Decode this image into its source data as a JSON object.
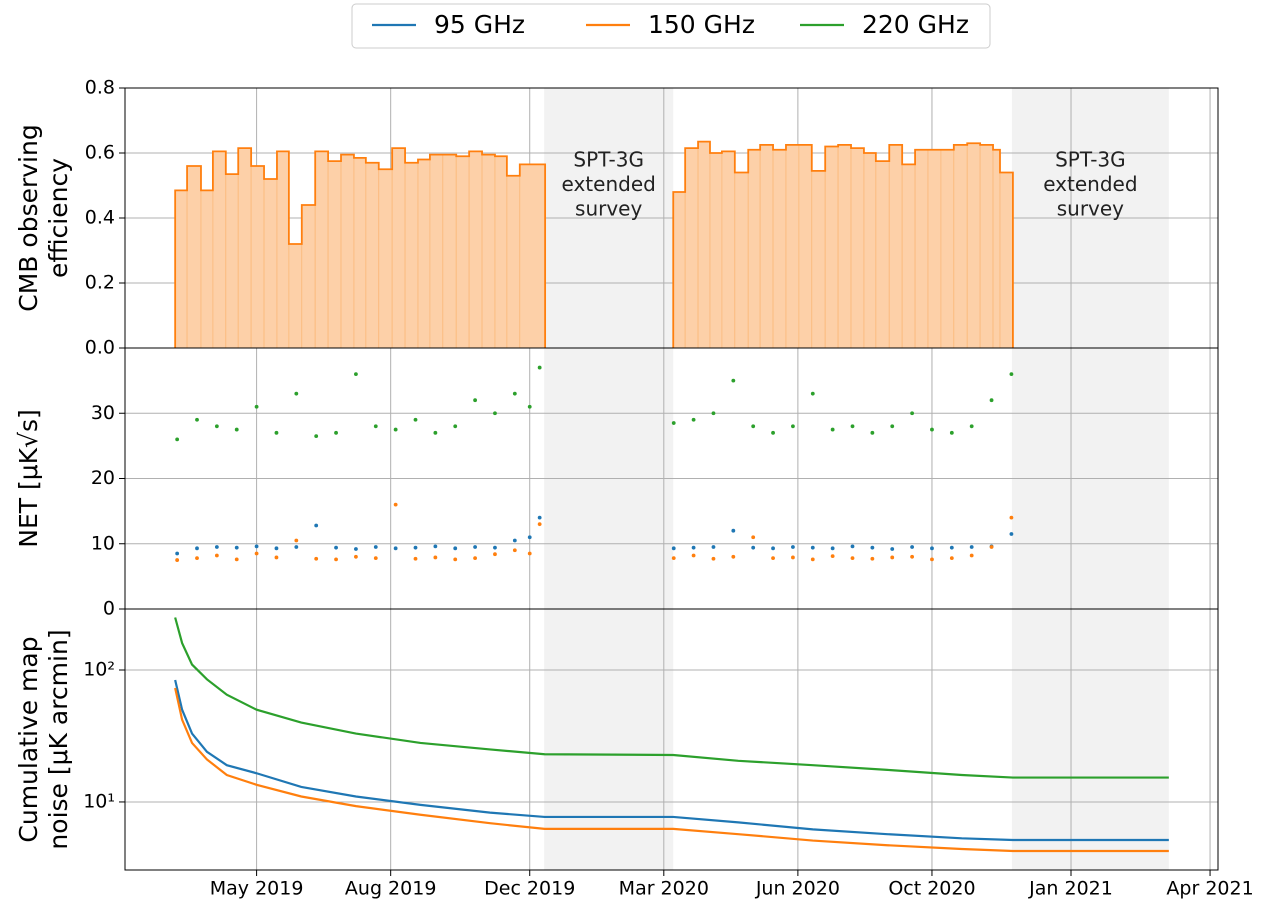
{
  "chart_data": [
    {
      "type": "histogram",
      "ylabel": [
        "CMB observing",
        "efficiency"
      ],
      "ylim": [
        0,
        0.8
      ],
      "yticks": [
        {
          "value": 0,
          "label": "0.0"
        },
        0.2,
        0.4,
        0.6,
        0.8
      ],
      "color": "#ff7f0e",
      "fill": "#fdd0a8",
      "series": [
        {
          "bins": [
            2019.166,
            2019.19,
            2019.218,
            2019.242,
            2019.268,
            2019.293,
            2019.319,
            2019.345,
            2019.371,
            2019.395,
            2019.421,
            2019.448,
            2019.474,
            2019.5,
            2019.526,
            2019.55,
            2019.576,
            2019.603,
            2019.629,
            2019.655,
            2019.679,
            2019.705,
            2019.732,
            2019.758,
            2019.784,
            2019.81,
            2019.834,
            2019.86,
            2019.911
          ],
          "values": [
            0.485,
            0.56,
            0.485,
            0.605,
            0.535,
            0.615,
            0.56,
            0.52,
            0.605,
            0.32,
            0.44,
            0.605,
            0.575,
            0.595,
            0.585,
            0.57,
            0.55,
            0.615,
            0.57,
            0.58,
            0.595,
            0.595,
            0.59,
            0.605,
            0.595,
            0.59,
            0.53,
            0.565
          ]
        },
        {
          "bins": [
            2020.169,
            2020.193,
            2020.219,
            2020.243,
            2020.267,
            2020.293,
            2020.32,
            2020.344,
            2020.37,
            2020.396,
            2020.422,
            2020.448,
            2020.475,
            2020.501,
            2020.527,
            2020.553,
            2020.577,
            2020.604,
            2020.63,
            2020.656,
            2020.682,
            2020.708,
            2020.734,
            2020.761,
            2020.787,
            2020.813,
            2020.827,
            2020.853
          ],
          "values": [
            0.48,
            0.615,
            0.635,
            0.6,
            0.605,
            0.54,
            0.61,
            0.625,
            0.61,
            0.625,
            0.625,
            0.545,
            0.62,
            0.625,
            0.615,
            0.6,
            0.575,
            0.625,
            0.565,
            0.61,
            0.61,
            0.61,
            0.625,
            0.63,
            0.625,
            0.61,
            0.54
          ]
        }
      ],
      "annotations": [
        {
          "xrange": [
            2019.909,
            2020.169
          ],
          "text": [
            "SPT-3G",
            "extended",
            "survey"
          ]
        },
        {
          "xrange": [
            2020.851,
            2021.167
          ],
          "text": [
            "SPT-3G",
            "extended",
            "survey"
          ]
        }
      ]
    },
    {
      "type": "scatter",
      "ylabel": "NET [μK√s]",
      "ylim": [
        0,
        40
      ],
      "yticks": [
        0,
        10,
        20,
        30
      ],
      "x": [
        2019.17,
        2019.21,
        2019.25,
        2019.29,
        2019.33,
        2019.37,
        2019.41,
        2019.45,
        2019.49,
        2019.53,
        2019.57,
        2019.61,
        2019.65,
        2019.69,
        2019.73,
        2019.77,
        2019.81,
        2019.85,
        2019.88,
        2019.9,
        2020.17,
        2020.21,
        2020.25,
        2020.29,
        2020.33,
        2020.37,
        2020.41,
        2020.45,
        2020.49,
        2020.53,
        2020.57,
        2020.61,
        2020.65,
        2020.69,
        2020.73,
        2020.77,
        2020.81,
        2020.85
      ],
      "series": [
        {
          "color": "#1f77b4",
          "values": [
            8.5,
            9.3,
            9.5,
            9.4,
            9.6,
            9.3,
            9.5,
            12.8,
            9.4,
            9.2,
            9.5,
            9.3,
            9.4,
            9.6,
            9.3,
            9.5,
            9.4,
            10.5,
            11,
            14,
            9.3,
            9.4,
            9.5,
            12,
            9.4,
            9.3,
            9.5,
            9.4,
            9.3,
            9.6,
            9.4,
            9.2,
            9.5,
            9.3,
            9.4,
            9.5,
            9.6,
            11.5
          ]
        },
        {
          "color": "#ff7f0e",
          "values": [
            7.5,
            7.8,
            8.2,
            7.6,
            8.5,
            7.9,
            10.5,
            7.7,
            7.6,
            8.0,
            7.8,
            16,
            7.7,
            7.9,
            7.6,
            7.8,
            8.4,
            9,
            8.5,
            13,
            7.8,
            8.2,
            7.7,
            8.0,
            11,
            7.8,
            7.9,
            7.6,
            8.1,
            7.8,
            7.7,
            7.9,
            8.0,
            7.6,
            7.8,
            8.2,
            9.5,
            14
          ]
        },
        {
          "color": "#2ca02c",
          "values": [
            26,
            29,
            28,
            27.5,
            31,
            27,
            33,
            26.5,
            27,
            36,
            28,
            27.5,
            29,
            27,
            28,
            32,
            30,
            33,
            31,
            37,
            28.5,
            29,
            30,
            35,
            28,
            27,
            28,
            33,
            27.5,
            28,
            27,
            28,
            30,
            27.5,
            27,
            28,
            32,
            36
          ]
        }
      ]
    },
    {
      "type": "line",
      "ylabel": [
        "Cumulative map",
        "noise [μK arcmin]"
      ],
      "log": true,
      "ylim": [
        3.05,
        290
      ],
      "yticks": [
        {
          "value": 100,
          "label": "10²"
        },
        {
          "value": 10,
          "label": "10¹"
        }
      ],
      "xlim": [
        2019.065,
        2021.266
      ],
      "xticks": [
        {
          "value": 2019.33,
          "label": "May 2019"
        },
        {
          "value": 2019.6,
          "label": "Aug 2019"
        },
        {
          "value": 2019.88,
          "label": "Dec 2019"
        },
        {
          "value": 2020.15,
          "label": "Mar 2020"
        },
        {
          "value": 2020.42,
          "label": "Jun 2020"
        },
        {
          "value": 2020.69,
          "label": "Oct 2020"
        },
        {
          "value": 2020.97,
          "label": "Jan 2021"
        },
        {
          "value": 2021.25,
          "label": "Apr 2021"
        }
      ],
      "grid": true,
      "legend": "top",
      "x": [
        2019.166,
        2019.18,
        2019.2,
        2019.23,
        2019.27,
        2019.33,
        2019.42,
        2019.53,
        2019.66,
        2019.8,
        2019.91,
        2020.169,
        2020.3,
        2020.45,
        2020.6,
        2020.75,
        2020.853,
        2021.167
      ],
      "series": [
        {
          "name": "95 GHz",
          "color": "#1f77b4",
          "values": [
            84,
            50,
            33,
            24,
            19,
            16.5,
            13,
            11,
            9.5,
            8.3,
            7.7,
            7.7,
            7.0,
            6.2,
            5.7,
            5.3,
            5.15,
            5.15
          ]
        },
        {
          "name": "150 GHz",
          "color": "#ff7f0e",
          "values": [
            73,
            42,
            28,
            21,
            16,
            13.5,
            11,
            9.3,
            8,
            6.9,
            6.25,
            6.25,
            5.7,
            5.1,
            4.7,
            4.4,
            4.25,
            4.25
          ]
        },
        {
          "name": "220 GHz",
          "color": "#2ca02c",
          "values": [
            250,
            160,
            110,
            85,
            65,
            50,
            40,
            33,
            28,
            25,
            23,
            22.7,
            20.5,
            19,
            17.5,
            16,
            15.3,
            15.3
          ]
        }
      ]
    }
  ]
}
